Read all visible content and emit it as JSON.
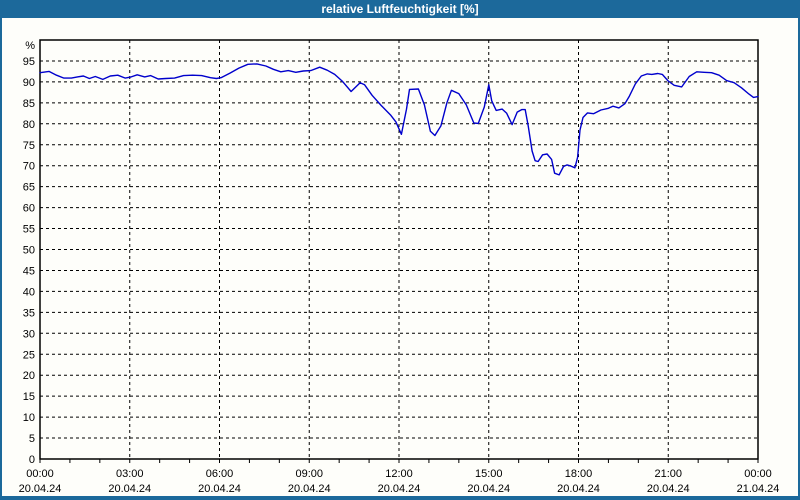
{
  "window": {
    "title": "relative Luftfeuchtigkeit [%]",
    "titlebar_color": "#1C699B",
    "panel_background": "#FEFEFA"
  },
  "chart_data": {
    "type": "line",
    "title": "relative Luftfeuchtigkeit [%]",
    "xlabel": "",
    "ylabel": "%",
    "ylim": [
      0,
      100
    ],
    "xlim_hours": [
      0,
      24
    ],
    "grid": "dashed",
    "legend": "none",
    "line_color": "#0000CC",
    "frame_color": "#000000",
    "y_ticks": [
      0,
      5,
      10,
      15,
      20,
      25,
      30,
      35,
      40,
      45,
      50,
      55,
      60,
      65,
      70,
      75,
      80,
      85,
      90,
      95
    ],
    "x_minor_tick_hours": 1,
    "x_major_ticks": [
      {
        "hour": 0,
        "time": "00:00",
        "date": "20.04.24"
      },
      {
        "hour": 3,
        "time": "03:00",
        "date": "20.04.24"
      },
      {
        "hour": 6,
        "time": "06:00",
        "date": "20.04.24"
      },
      {
        "hour": 9,
        "time": "09:00",
        "date": "20.04.24"
      },
      {
        "hour": 12,
        "time": "12:00",
        "date": "20.04.24"
      },
      {
        "hour": 15,
        "time": "15:00",
        "date": "20.04.24"
      },
      {
        "hour": 18,
        "time": "18:00",
        "date": "20.04.24"
      },
      {
        "hour": 21,
        "time": "21:00",
        "date": "20.04.24"
      },
      {
        "hour": 24,
        "time": "00:00",
        "date": "21.04.24"
      }
    ],
    "series": [
      {
        "name": "relative Luftfeuchtigkeit [%]",
        "points": [
          [
            0.0,
            92.2
          ],
          [
            0.3,
            92.5
          ],
          [
            0.55,
            91.6
          ],
          [
            0.8,
            90.9
          ],
          [
            1.05,
            90.9
          ],
          [
            1.25,
            91.2
          ],
          [
            1.45,
            91.4
          ],
          [
            1.65,
            90.8
          ],
          [
            1.85,
            91.3
          ],
          [
            2.1,
            90.6
          ],
          [
            2.35,
            91.4
          ],
          [
            2.6,
            91.6
          ],
          [
            2.85,
            90.9
          ],
          [
            3.05,
            91.2
          ],
          [
            3.25,
            91.7
          ],
          [
            3.5,
            91.2
          ],
          [
            3.7,
            91.5
          ],
          [
            3.95,
            90.7
          ],
          [
            4.2,
            90.8
          ],
          [
            4.5,
            90.9
          ],
          [
            4.8,
            91.5
          ],
          [
            5.1,
            91.6
          ],
          [
            5.4,
            91.5
          ],
          [
            5.7,
            91.0
          ],
          [
            5.9,
            90.8
          ],
          [
            6.05,
            91.0
          ],
          [
            6.35,
            92.1
          ],
          [
            6.65,
            93.3
          ],
          [
            6.95,
            94.2
          ],
          [
            7.25,
            94.3
          ],
          [
            7.55,
            93.8
          ],
          [
            7.8,
            93.0
          ],
          [
            8.05,
            92.4
          ],
          [
            8.3,
            92.7
          ],
          [
            8.55,
            92.3
          ],
          [
            8.8,
            92.6
          ],
          [
            9.05,
            92.7
          ],
          [
            9.35,
            93.5
          ],
          [
            9.6,
            92.8
          ],
          [
            9.85,
            91.8
          ],
          [
            10.1,
            90.2
          ],
          [
            10.4,
            87.7
          ],
          [
            10.7,
            89.8
          ],
          [
            10.85,
            89.3
          ],
          [
            11.1,
            86.8
          ],
          [
            11.4,
            84.4
          ],
          [
            11.73,
            82.0
          ],
          [
            11.9,
            80.4
          ],
          [
            12.08,
            77.5
          ],
          [
            12.25,
            83.5
          ],
          [
            12.35,
            88.2
          ],
          [
            12.65,
            88.3
          ],
          [
            12.85,
            84.5
          ],
          [
            13.05,
            78.2
          ],
          [
            13.2,
            77.2
          ],
          [
            13.4,
            79.5
          ],
          [
            13.6,
            85.0
          ],
          [
            13.75,
            88.0
          ],
          [
            14.0,
            87.2
          ],
          [
            14.25,
            84.5
          ],
          [
            14.5,
            80.2
          ],
          [
            14.65,
            80.1
          ],
          [
            14.85,
            84.0
          ],
          [
            15.0,
            89.3
          ],
          [
            15.1,
            85.5
          ],
          [
            15.25,
            83.2
          ],
          [
            15.45,
            83.5
          ],
          [
            15.6,
            82.5
          ],
          [
            15.78,
            79.8
          ],
          [
            15.95,
            82.8
          ],
          [
            16.1,
            83.4
          ],
          [
            16.22,
            83.4
          ],
          [
            16.32,
            79.5
          ],
          [
            16.45,
            73.5
          ],
          [
            16.55,
            71.2
          ],
          [
            16.65,
            71.0
          ],
          [
            16.8,
            72.6
          ],
          [
            16.95,
            72.8
          ],
          [
            17.1,
            71.5
          ],
          [
            17.2,
            68.2
          ],
          [
            17.35,
            67.8
          ],
          [
            17.5,
            69.8
          ],
          [
            17.62,
            70.2
          ],
          [
            17.75,
            69.9
          ],
          [
            17.88,
            69.5
          ],
          [
            17.97,
            72.0
          ],
          [
            18.05,
            78.5
          ],
          [
            18.15,
            81.5
          ],
          [
            18.3,
            82.6
          ],
          [
            18.5,
            82.4
          ],
          [
            18.75,
            83.3
          ],
          [
            19.0,
            83.7
          ],
          [
            19.15,
            84.2
          ],
          [
            19.35,
            83.8
          ],
          [
            19.55,
            84.8
          ],
          [
            19.7,
            86.6
          ],
          [
            19.9,
            89.5
          ],
          [
            20.1,
            91.4
          ],
          [
            20.3,
            91.9
          ],
          [
            20.45,
            91.8
          ],
          [
            20.65,
            92.0
          ],
          [
            20.8,
            91.8
          ],
          [
            21.0,
            90.2
          ],
          [
            21.2,
            89.2
          ],
          [
            21.45,
            88.8
          ],
          [
            21.7,
            91.3
          ],
          [
            21.95,
            92.4
          ],
          [
            22.2,
            92.3
          ],
          [
            22.45,
            92.2
          ],
          [
            22.7,
            91.6
          ],
          [
            22.95,
            90.3
          ],
          [
            23.2,
            89.8
          ],
          [
            23.45,
            88.6
          ],
          [
            23.7,
            87.1
          ],
          [
            23.85,
            86.3
          ],
          [
            24.0,
            86.5
          ]
        ]
      }
    ]
  }
}
